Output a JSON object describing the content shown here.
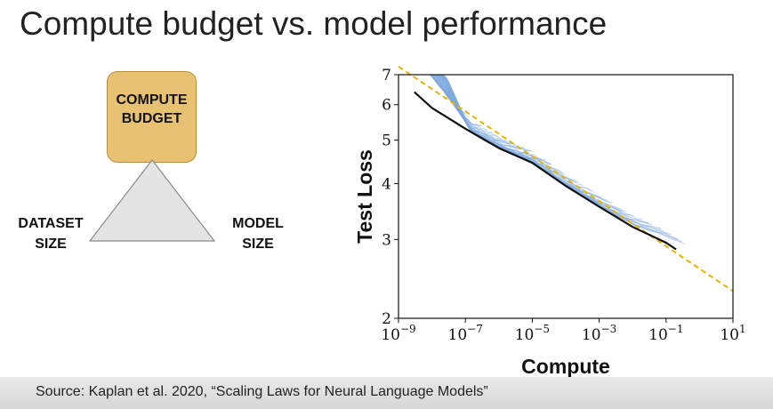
{
  "slide": {
    "title": "Compute budget vs. model performance",
    "source": "Source: Kaplan et al. 2020, “Scaling Laws for Neural Language Models”"
  },
  "diagram": {
    "top_label_line1": "COMPUTE",
    "top_label_line2": "BUDGET",
    "left_label_line1": "DATASET",
    "left_label_line2": "SIZE",
    "right_label_line1": "MODEL",
    "right_label_line2": "SIZE",
    "box_color": "#e8c272",
    "triangle_color": "#e4e4e4"
  },
  "chart_data": {
    "type": "line",
    "xlabel": "Compute",
    "ylabel": "Test Loss",
    "x_scale": "log",
    "y_scale": "log",
    "xlim": [
      1e-09,
      10
    ],
    "ylim": [
      2,
      7
    ],
    "x_ticks": [
      1e-09,
      1e-07,
      1e-05,
      0.001,
      0.1,
      10
    ],
    "x_tick_labels": [
      {
        "base": "10",
        "exp": "−9"
      },
      {
        "base": "10",
        "exp": "−7"
      },
      {
        "base": "10",
        "exp": "−5"
      },
      {
        "base": "10",
        "exp": "−3"
      },
      {
        "base": "10",
        "exp": "−1"
      },
      {
        "base": "10",
        "exp": "1"
      }
    ],
    "y_ticks": [
      2,
      3,
      4,
      5,
      6,
      7
    ],
    "y_tick_labels": [
      "2",
      "3",
      "4",
      "5",
      "6",
      "7"
    ],
    "grid": false,
    "legend": "none",
    "frontier": {
      "color": "#111111",
      "x": [
        3e-09,
        1e-08,
        1e-07,
        1e-06,
        1e-05,
        0.0001,
        0.001,
        0.01,
        0.1,
        0.2
      ],
      "y": [
        6.4,
        5.9,
        5.3,
        4.8,
        4.45,
        3.95,
        3.55,
        3.2,
        2.95,
        2.85
      ]
    },
    "fit": {
      "color": "#e8b400",
      "x": [
        1e-09,
        10
      ],
      "y": [
        7.3,
        2.3
      ]
    },
    "runs": {
      "color": "#7ea8de",
      "count": 55,
      "x_range": [
        1e-09,
        0.5
      ],
      "y_range": [
        2.85,
        7
      ]
    }
  }
}
